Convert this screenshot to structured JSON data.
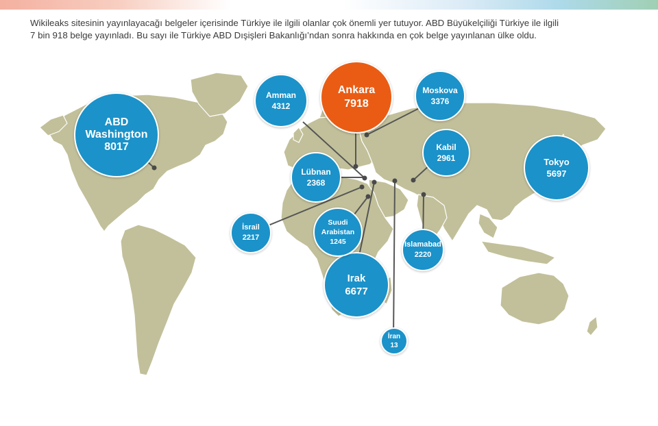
{
  "intro": {
    "line1": "Wikileaks sitesinin yayınlayacağı belgeler içerisinde Türkiye ile ilgili olanlar çok önemli yer tutuyor. ABD Büyükelçiliği Türkiye ile ilgili",
    "line2": "7 bin 918 belge yayınladı. Bu sayı ile Türkiye ABD Dışişleri Bakanlığı’ndan sonra hakkında en çok belge yayınlanan ülke oldu."
  },
  "colors": {
    "land": "#c2c09a",
    "bubble": "#1b92c9",
    "highlight": "#ea5c14",
    "line": "#555555"
  },
  "map_data": {
    "type": "bubble-map",
    "locations": [
      {
        "id": "washington",
        "lines": [
          "ABD",
          "Washington",
          "8017"
        ],
        "count": 8017,
        "highlight": false
      },
      {
        "id": "ankara",
        "lines": [
          "Ankara",
          "7918"
        ],
        "count": 7918,
        "highlight": true
      },
      {
        "id": "irak",
        "lines": [
          "Irak",
          "6677"
        ],
        "count": 6677,
        "highlight": false
      },
      {
        "id": "tokyo",
        "lines": [
          "Tokyo",
          "5697"
        ],
        "count": 5697,
        "highlight": false
      },
      {
        "id": "amman",
        "lines": [
          "Amman",
          "4312"
        ],
        "count": 4312,
        "highlight": false
      },
      {
        "id": "moskova",
        "lines": [
          "Moskova",
          "3376"
        ],
        "count": 3376,
        "highlight": false
      },
      {
        "id": "kabil",
        "lines": [
          "Kabil",
          "2961"
        ],
        "count": 2961,
        "highlight": false
      },
      {
        "id": "lubnan",
        "lines": [
          "Lübnan",
          "2368"
        ],
        "count": 2368,
        "highlight": false
      },
      {
        "id": "islamabad",
        "lines": [
          "Islamabad",
          "2220"
        ],
        "count": 2220,
        "highlight": false
      },
      {
        "id": "israil",
        "lines": [
          "İsrail",
          "2217"
        ],
        "count": 2217,
        "highlight": false
      },
      {
        "id": "suudi",
        "lines": [
          "Suudi",
          "Arabistan",
          "1245"
        ],
        "count": 1245,
        "highlight": false
      },
      {
        "id": "iran",
        "lines": [
          "İran",
          "13"
        ],
        "count": 13,
        "highlight": false
      }
    ]
  }
}
